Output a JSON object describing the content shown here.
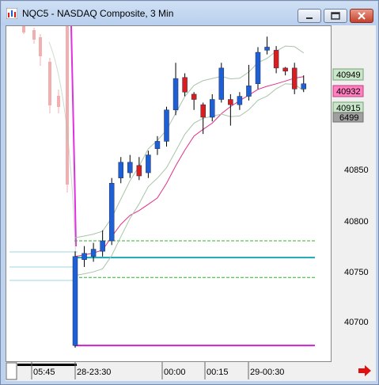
{
  "window": {
    "title": "NQC5 - NASDAQ Composite, 3 Min",
    "minimize_icon": "minimize-icon",
    "restore_icon": "restore-icon",
    "close_icon": "close-icon"
  },
  "price_axis": {
    "ticks": [
      "40850",
      "40800",
      "40750",
      "40700"
    ],
    "tags": [
      {
        "label": "40949",
        "bg": "#c8e6c8"
      },
      {
        "label": "40932",
        "bg": "#ff7fc0"
      },
      {
        "label": "40915",
        "bg": "#c8e6c8"
      },
      {
        "label": "6499",
        "bg": "#a0a0a0"
      }
    ]
  },
  "time_axis": {
    "labels": [
      "05:45",
      "28-23:30",
      "00:00",
      "00:15",
      "29-00:30"
    ]
  },
  "status_icon": "red-arrow-right-icon",
  "colors": {
    "up": "#1f5fd6",
    "down": "#d81e1e",
    "bollinger": "#a8c4a8",
    "ma": "#e0308a",
    "cyan_line": "#1aa7b3",
    "green_dash": "#2cb52c",
    "magenta_line": "#d020d0"
  },
  "chart_data": {
    "type": "candlestick",
    "ylim": [
      40665,
      40985
    ],
    "reference_lines": {
      "upper_dashed_green": 40780,
      "cyan_solid": 40764,
      "lower_dashed_green": 40745,
      "magenta_solid": 40680
    },
    "candles": [
      {
        "o": 40680,
        "c": 40765,
        "h": 40770,
        "l": 40678
      },
      {
        "o": 40762,
        "c": 40768,
        "h": 40775,
        "l": 40755
      },
      {
        "o": 40765,
        "c": 40772,
        "h": 40778,
        "l": 40760
      },
      {
        "o": 40770,
        "c": 40780,
        "h": 40790,
        "l": 40765
      },
      {
        "o": 40780,
        "c": 40835,
        "h": 40840,
        "l": 40776
      },
      {
        "o": 40840,
        "c": 40855,
        "h": 40860,
        "l": 40835
      },
      {
        "o": 40845,
        "c": 40855,
        "h": 40862,
        "l": 40840
      },
      {
        "o": 40852,
        "c": 40842,
        "h": 40860,
        "l": 40838
      },
      {
        "o": 40845,
        "c": 40862,
        "h": 40866,
        "l": 40840
      },
      {
        "o": 40868,
        "c": 40875,
        "h": 40880,
        "l": 40862
      },
      {
        "o": 40875,
        "c": 40905,
        "h": 40908,
        "l": 40870
      },
      {
        "o": 40905,
        "c": 40935,
        "h": 40950,
        "l": 40900
      },
      {
        "o": 40936,
        "c": 40922,
        "h": 40940,
        "l": 40918
      },
      {
        "o": 40920,
        "c": 40915,
        "h": 40922,
        "l": 40905
      },
      {
        "o": 40910,
        "c": 40898,
        "h": 40912,
        "l": 40882
      },
      {
        "o": 40898,
        "c": 40915,
        "h": 40920,
        "l": 40894
      },
      {
        "o": 40915,
        "c": 40945,
        "h": 40950,
        "l": 40912
      },
      {
        "o": 40915,
        "c": 40910,
        "h": 40920,
        "l": 40890
      },
      {
        "o": 40910,
        "c": 40918,
        "h": 40922,
        "l": 40905
      },
      {
        "o": 40918,
        "c": 40928,
        "h": 40948,
        "l": 40914
      },
      {
        "o": 40930,
        "c": 40960,
        "h": 40965,
        "l": 40925
      },
      {
        "o": 40962,
        "c": 40965,
        "h": 40975,
        "l": 40958
      },
      {
        "o": 40962,
        "c": 40945,
        "h": 40966,
        "l": 40940
      },
      {
        "o": 40945,
        "c": 40942,
        "h": 40946,
        "l": 40938
      },
      {
        "o": 40945,
        "c": 40925,
        "h": 40950,
        "l": 40920
      },
      {
        "o": 40925,
        "c": 40930,
        "h": 40938,
        "l": 40922
      }
    ]
  }
}
